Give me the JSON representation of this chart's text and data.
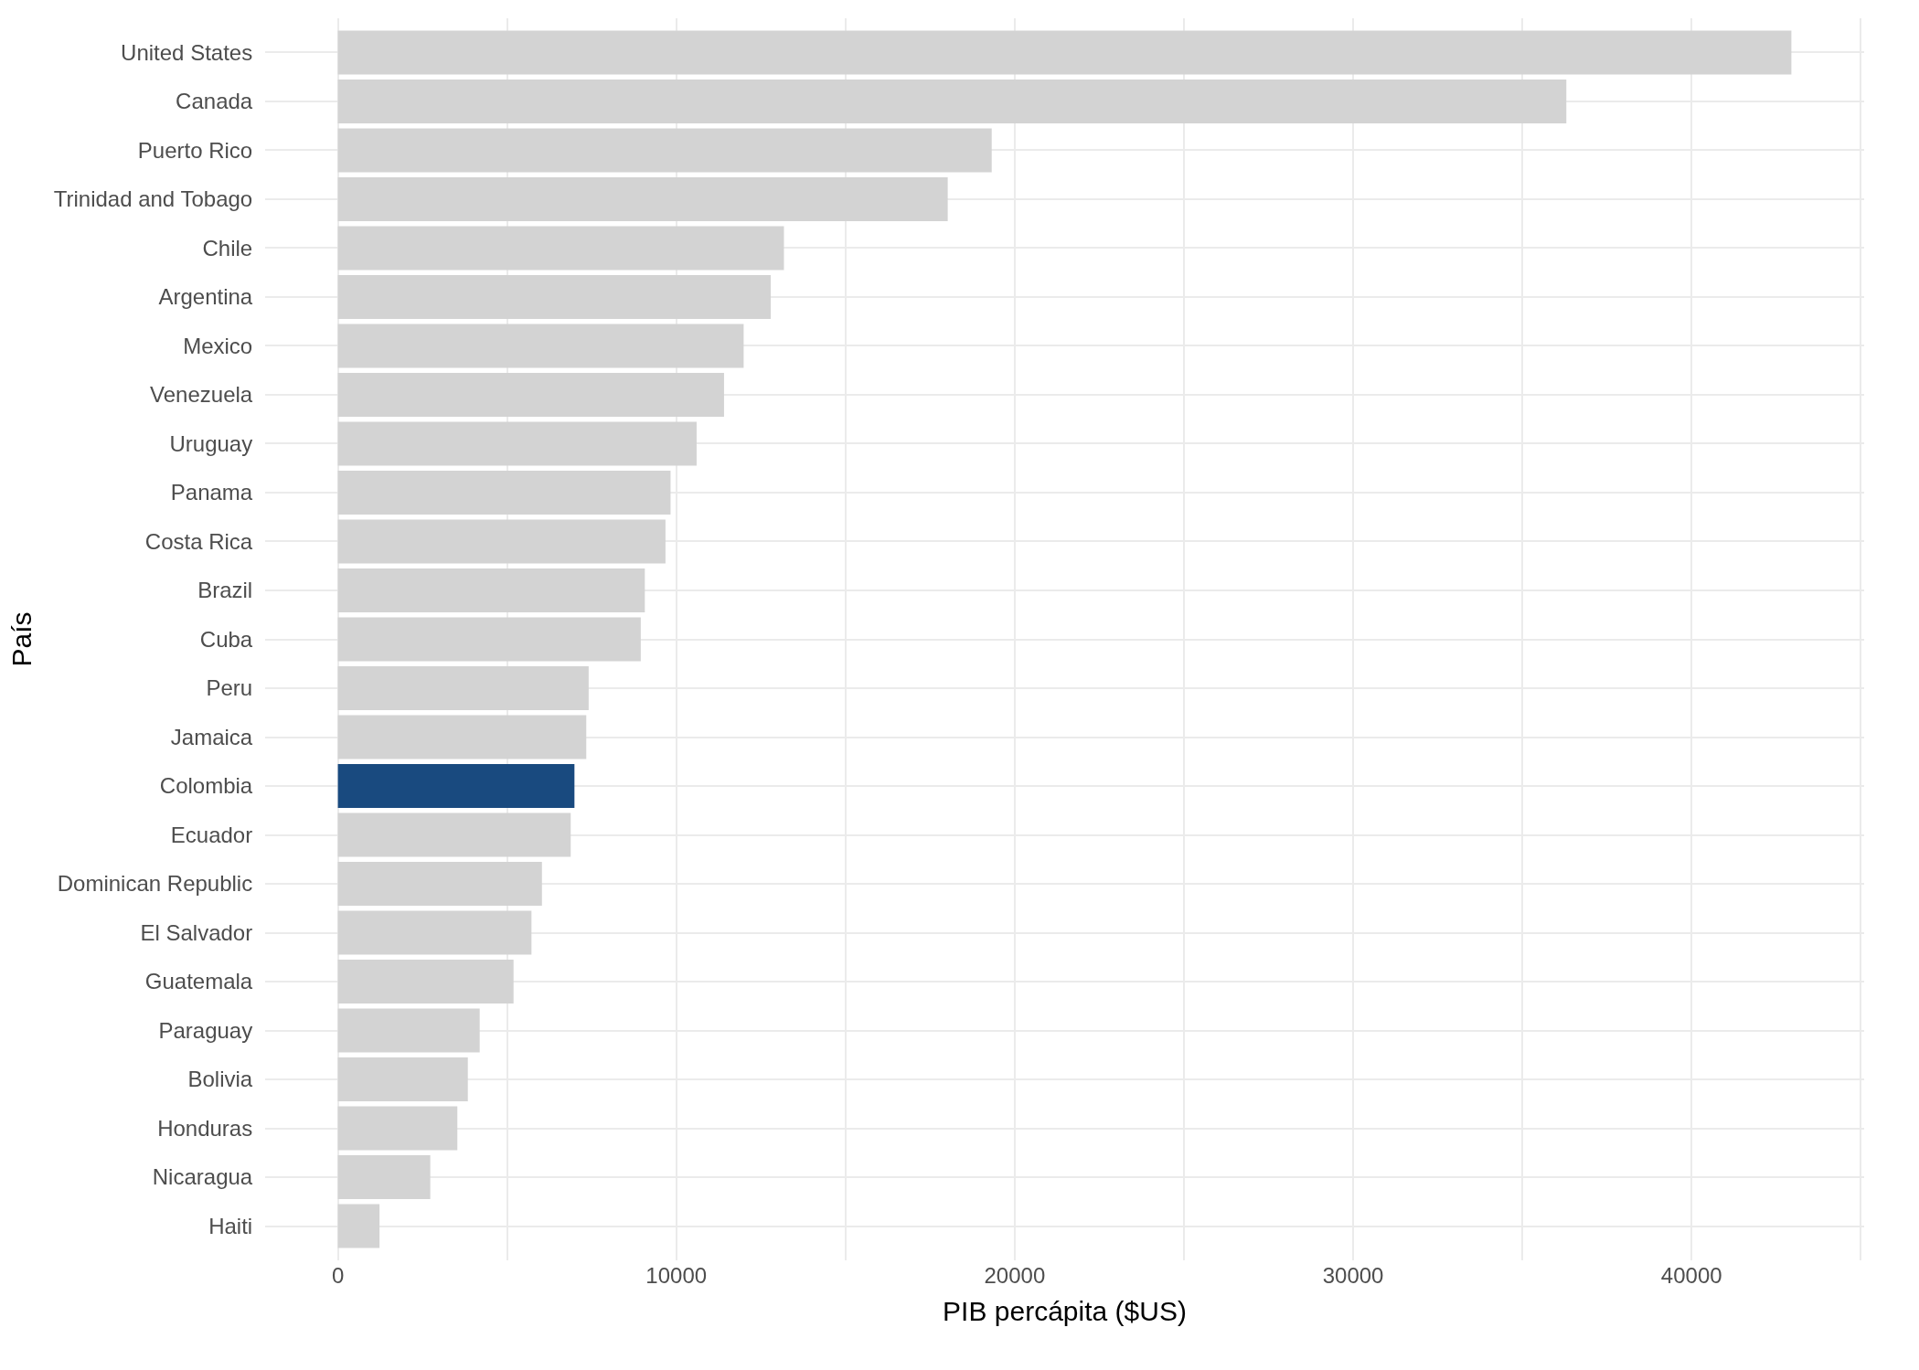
{
  "chart_data": {
    "type": "bar",
    "orientation": "horizontal",
    "xlabel": "PIB percápita ($US)",
    "ylabel": "País",
    "categories": [
      "United States",
      "Canada",
      "Puerto Rico",
      "Trinidad and Tobago",
      "Chile",
      "Argentina",
      "Mexico",
      "Venezuela",
      "Uruguay",
      "Panama",
      "Costa Rica",
      "Brazil",
      "Cuba",
      "Peru",
      "Jamaica",
      "Colombia",
      "Ecuador",
      "Dominican Republic",
      "El Salvador",
      "Guatemala",
      "Paraguay",
      "Bolivia",
      "Honduras",
      "Nicaragua",
      "Haiti"
    ],
    "values": [
      42950,
      36300,
      19320,
      18020,
      13180,
      12790,
      11990,
      11410,
      10600,
      9830,
      9680,
      9070,
      8950,
      7410,
      7340,
      6990,
      6880,
      6030,
      5720,
      5190,
      4190,
      3840,
      3530,
      2730,
      1230
    ],
    "colors": [
      "#d3d3d3",
      "#d3d3d3",
      "#d3d3d3",
      "#d3d3d3",
      "#d3d3d3",
      "#d3d3d3",
      "#d3d3d3",
      "#d3d3d3",
      "#d3d3d3",
      "#d3d3d3",
      "#d3d3d3",
      "#d3d3d3",
      "#d3d3d3",
      "#d3d3d3",
      "#d3d3d3",
      "#194a7f",
      "#d3d3d3",
      "#d3d3d3",
      "#d3d3d3",
      "#d3d3d3",
      "#d3d3d3",
      "#d3d3d3",
      "#d3d3d3",
      "#d3d3d3",
      "#d3d3d3"
    ],
    "xlim": [
      -2150,
      45100
    ],
    "xticks": [
      0,
      {
        "value": 5000,
        "label": null
      },
      10000,
      {
        "value": 15000,
        "label": null
      },
      20000,
      {
        "value": 25000,
        "label": null
      },
      30000,
      {
        "value": 35000,
        "label": null
      },
      40000,
      {
        "value": 45000,
        "label": null
      }
    ],
    "grid": true,
    "legend": false
  }
}
